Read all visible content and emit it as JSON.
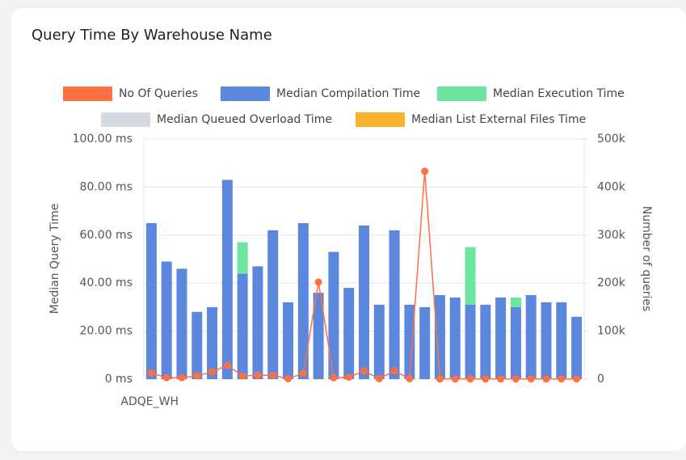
{
  "chart_data": {
    "type": "bar_line",
    "title": "Query Time By Warehouse Name",
    "y_label": "Median Query Time",
    "y2_label": "Number of queries",
    "categories": [
      "ADQE_WH",
      null,
      null,
      null,
      null,
      null,
      null,
      null,
      null,
      null,
      null,
      null,
      null,
      null,
      null,
      null,
      null,
      null,
      null,
      null,
      null,
      null,
      null,
      null,
      null,
      null,
      null,
      null,
      null
    ],
    "series": [
      {
        "name": "No Of Queries",
        "color": "#ff7043",
        "kind": "line",
        "axis": "y2",
        "values": [
          13000,
          3000,
          3000,
          7000,
          15000,
          29000,
          7000,
          8000,
          8000,
          1000,
          12000,
          202000,
          3000,
          4000,
          17000,
          1000,
          17000,
          1000,
          433000,
          500,
          500,
          500,
          500,
          500,
          500,
          500,
          500,
          500,
          500
        ]
      },
      {
        "name": "Median Compilation Time",
        "color": "#5b87dc",
        "kind": "bar",
        "values": [
          65,
          49,
          46,
          28,
          30,
          83,
          44,
          47,
          62,
          32,
          65,
          36,
          53,
          38,
          64,
          31,
          62,
          31,
          30,
          35,
          34,
          31,
          31,
          34,
          30,
          35,
          32,
          32,
          26
        ]
      },
      {
        "name": "Median Execution Time",
        "color": "#6ee6a0",
        "kind": "bar",
        "values": [
          0,
          0,
          0,
          0,
          0,
          0,
          13,
          0,
          0,
          0,
          0,
          0,
          0,
          0,
          0,
          0,
          0,
          0,
          0,
          0,
          0,
          24,
          0,
          0,
          4,
          0,
          0,
          0,
          0
        ]
      },
      {
        "name": "Median Queued Overload Time",
        "color": "#d5dbe3",
        "kind": "bar",
        "values": [
          0,
          0,
          0,
          0,
          0,
          0,
          0,
          0,
          0,
          0,
          0,
          0,
          0,
          0,
          0,
          0,
          0,
          0,
          0,
          0,
          0,
          0,
          0,
          0,
          0,
          0,
          0,
          0,
          0
        ]
      },
      {
        "name": "Median List External Files Time",
        "color": "#fdb22b",
        "kind": "bar",
        "values": [
          0,
          0,
          0,
          0,
          0,
          0,
          0,
          0,
          0,
          0,
          0,
          0,
          0,
          0,
          0,
          0,
          0,
          0,
          0,
          0,
          0,
          0,
          0,
          0,
          0,
          0,
          0,
          0,
          0
        ]
      }
    ],
    "stacked": true,
    "ylim": [
      0,
      100
    ],
    "yticks": [
      {
        "value": 0,
        "label": "0 ms"
      },
      {
        "value": 20,
        "label": "20.00 ms"
      },
      {
        "value": 40,
        "label": "40.00 ms"
      },
      {
        "value": 60,
        "label": "60.00 ms"
      },
      {
        "value": 80,
        "label": "80.00 ms"
      },
      {
        "value": 100,
        "label": "100.00 ms"
      }
    ],
    "y2lim": [
      0,
      500000
    ],
    "y2ticks": [
      0,
      {
        "value": 100000,
        "label": "100k"
      },
      {
        "value": 200000,
        "label": "200k"
      },
      {
        "value": 300000,
        "label": "300k"
      },
      {
        "value": 400000,
        "label": "400k"
      },
      {
        "value": 500000,
        "label": "500k"
      }
    ],
    "grid": true,
    "legend": "top"
  }
}
